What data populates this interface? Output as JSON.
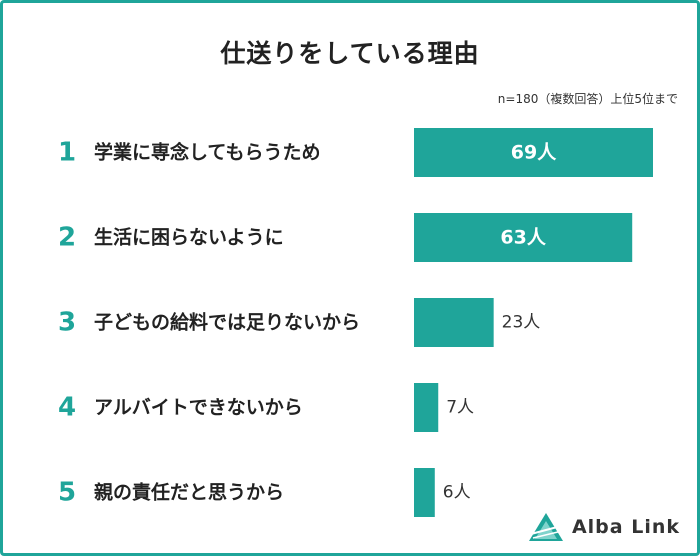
{
  "chart_data": {
    "type": "bar",
    "orientation": "horizontal",
    "title": "仕送りをしている理由",
    "note": "n=180（複数回答）上位5位まで",
    "ranks": [
      "1",
      "2",
      "3",
      "4",
      "5"
    ],
    "categories": [
      "学業に専念してもらうため",
      "生活に困らないように",
      "子どもの給料では足りないから",
      "アルバイトできないから",
      "親の責任だと思うから"
    ],
    "values": [
      69,
      63,
      23,
      7,
      6
    ],
    "value_labels": [
      "69人",
      "63人",
      "23人",
      "7人",
      "6人"
    ],
    "xlim": [
      0,
      69
    ],
    "grid": false,
    "bar_color": "#1fa59a"
  },
  "logo": {
    "text": "Alba Link",
    "color": "#1fa59a"
  }
}
